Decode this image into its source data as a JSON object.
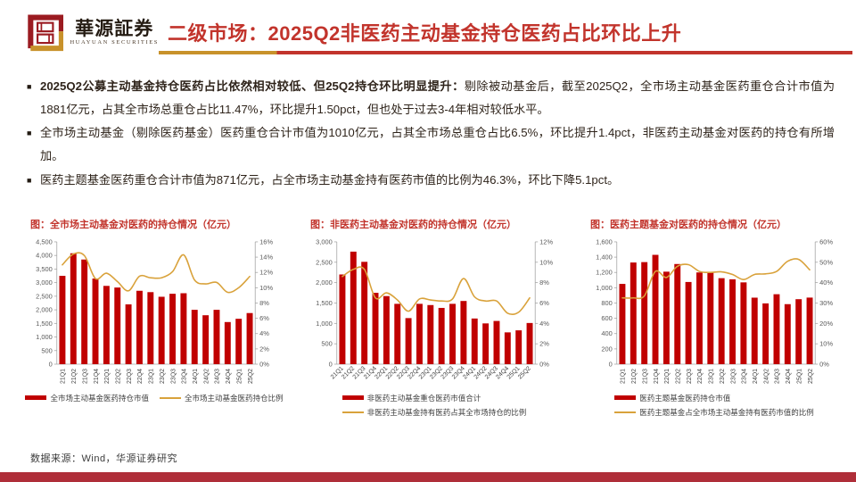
{
  "header": {
    "logo": {
      "brand_cn": "華源証券",
      "brand_en": "HUAYUAN SECURITIES"
    },
    "title": "二级市场：2025Q2非医药主动基金持仓医药占比环比上升"
  },
  "bullet_marker": "■",
  "bullets": [
    {
      "lead": "2025Q2公募主动基金持仓医药占比依然相对较低、但25Q2持仓环比明显提升：",
      "text": "剔除被动基金后，截至2025Q2，全市场主动基金医药重仓合计市值为1881亿元，占其全市场总重仓占比11.47%，环比提升1.50pct，但也处于过去3-4年相对较低水平。"
    },
    {
      "lead": "",
      "text": "全市场主动基金（剔除医药基金）医药重仓合计市值为1010亿元，占其全市场总重仓占比6.5%，环比提升1.4pct，非医药主动基金对医药的持仓有所增加。"
    },
    {
      "lead": "",
      "text": "医药主题基金医药重仓合计市值为871亿元，占全市场主动基金持有医药市值的比例为46.3%，环比下降5.1pct。"
    }
  ],
  "colors": {
    "bar": "#c00000",
    "line": "#d9a23b",
    "accent_red": "#c2342c",
    "logo_red": "#9b1b21",
    "logo_gold": "#c8922b",
    "footer_bar": "#af2e39",
    "axis": "#a6a6a6",
    "tick_text": "#595959"
  },
  "chart_data": [
    {
      "type": "bar+line",
      "title": "图：全市场主动基金对医药的持仓情况（亿元）",
      "categories": [
        "21Q1",
        "21Q2",
        "21Q3",
        "21Q4",
        "22Q1",
        "22Q2",
        "22Q3",
        "22Q4",
        "23Q1",
        "23Q2",
        "23Q3",
        "23Q4",
        "24Q1",
        "24Q2",
        "24Q3",
        "24Q4",
        "25Q1",
        "25Q2"
      ],
      "series": [
        {
          "name": "全市场主动基金医药持仓市值",
          "type": "bar",
          "axis": "left",
          "values": [
            3250,
            4080,
            3850,
            3150,
            2880,
            2820,
            2200,
            2700,
            2650,
            2480,
            2590,
            2610,
            2000,
            1800,
            2000,
            1550,
            1670,
            1881
          ]
        },
        {
          "name": "全市场主动基金医药持仓比例",
          "type": "line",
          "axis": "right",
          "values": [
            13.0,
            14.4,
            14.2,
            11.2,
            11.9,
            10.8,
            9.6,
            11.5,
            11.3,
            11.3,
            12.1,
            14.3,
            11.0,
            10.5,
            10.7,
            9.4,
            10.0,
            11.47
          ]
        }
      ],
      "left_axis": {
        "min": 0,
        "max": 4500,
        "step": 500
      },
      "right_axis": {
        "min": 0,
        "max": 16,
        "step": 2,
        "format": "percent"
      },
      "x_label_rotation": -90,
      "legend_layout": "row",
      "grid": false
    },
    {
      "type": "bar+line",
      "title": "图：非医药主动基金对医药的持仓情况（亿元）",
      "categories": [
        "21Q1",
        "21Q2",
        "21Q3",
        "21Q4",
        "22Q1",
        "22Q2",
        "22Q3",
        "22Q4",
        "23Q1",
        "23Q2",
        "23Q3",
        "23Q4",
        "24Q1",
        "24Q2",
        "24Q3",
        "24Q4",
        "25Q1",
        "25Q2"
      ],
      "series": [
        {
          "name": "非医药主动基金重仓医药市值合计",
          "type": "bar",
          "axis": "left",
          "values": [
            2200,
            2760,
            2510,
            1750,
            1670,
            1480,
            1130,
            1480,
            1450,
            1380,
            1480,
            1550,
            1120,
            1000,
            1060,
            780,
            830,
            1010
          ]
        },
        {
          "name": "非医药主动基金持有医药占其全市场持仓的比例",
          "type": "line",
          "axis": "right",
          "values": [
            8.6,
            9.3,
            9.3,
            6.5,
            7.0,
            6.3,
            5.2,
            6.4,
            6.3,
            6.2,
            6.4,
            8.4,
            6.6,
            6.2,
            6.2,
            5.0,
            5.1,
            6.5
          ]
        }
      ],
      "left_axis": {
        "min": 0,
        "max": 3000,
        "step": 500
      },
      "right_axis": {
        "min": 0,
        "max": 12,
        "step": 2,
        "format": "percent"
      },
      "x_label_rotation": -45,
      "legend_layout": "col",
      "grid": false
    },
    {
      "type": "bar+line",
      "title": "图：医药主题基金对医药的持仓情况（亿元）",
      "categories": [
        "21Q1",
        "21Q2",
        "21Q3",
        "21Q4",
        "22Q1",
        "22Q2",
        "22Q3",
        "22Q4",
        "23Q1",
        "23Q2",
        "23Q3",
        "23Q4",
        "24Q1",
        "24Q2",
        "24Q3",
        "24Q4",
        "25Q1",
        "25Q2"
      ],
      "series": [
        {
          "name": "医药主题基金医药持仓市值",
          "type": "bar",
          "axis": "left",
          "values": [
            1050,
            1330,
            1335,
            1430,
            1210,
            1310,
            1075,
            1200,
            1200,
            1125,
            1110,
            1070,
            870,
            795,
            915,
            785,
            850,
            871
          ]
        },
        {
          "name": "医药主题基金占全市场主动基金持有医药市值的比例",
          "type": "line",
          "axis": "right",
          "values": [
            32.5,
            32.5,
            33.5,
            45.5,
            42.5,
            48.0,
            48.8,
            45.5,
            45.0,
            45.3,
            44.0,
            41.5,
            44.0,
            44.3,
            45.5,
            50.5,
            51.4,
            46.3
          ]
        }
      ],
      "left_axis": {
        "min": 0,
        "max": 1600,
        "step": 200
      },
      "right_axis": {
        "min": 0,
        "max": 60,
        "step": 10,
        "format": "percent"
      },
      "x_label_rotation": -90,
      "legend_layout": "col",
      "grid": false
    }
  ],
  "footer": {
    "source": "数据来源：Wind，华源证券研究"
  }
}
